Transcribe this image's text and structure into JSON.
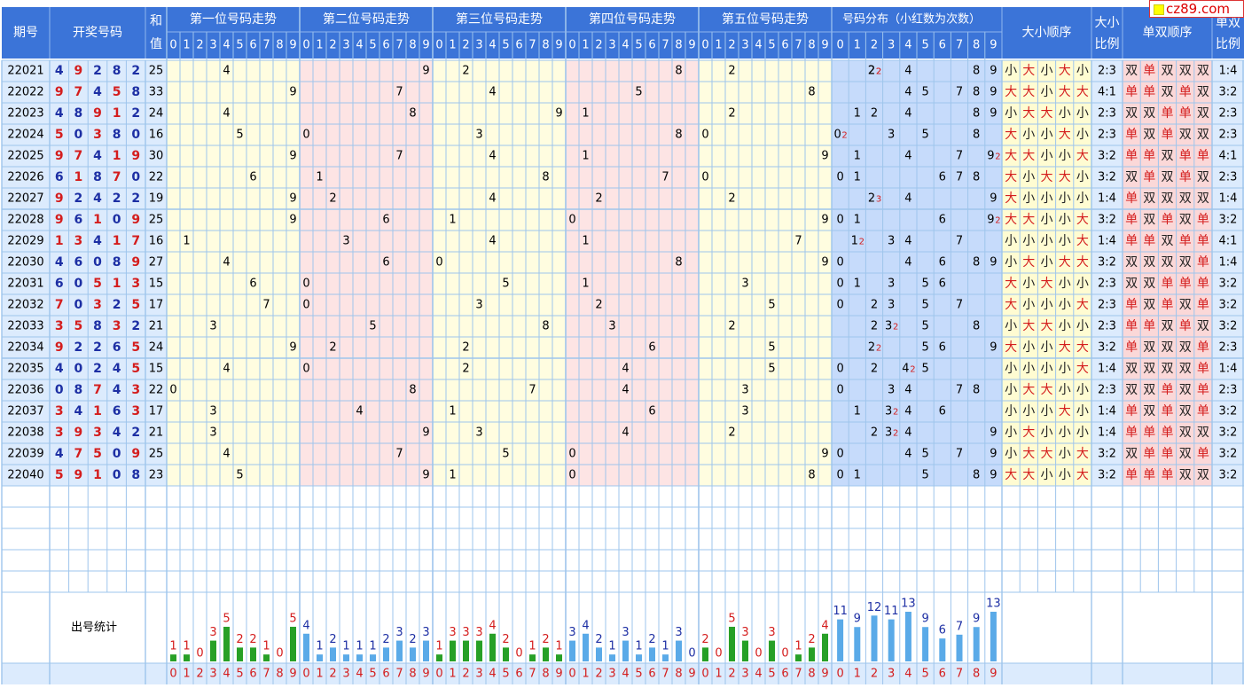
{
  "headers": {
    "issue": "期号",
    "draw": "开奖号码",
    "sum_top": "和",
    "sum_bottom": "值",
    "pos": [
      "第一位号码走势",
      "第二位号码走势",
      "第三位号码走势",
      "第四位号码走势",
      "第五位号码走势"
    ],
    "dist": "号码分布（小红数为次数）",
    "size_seq": "大小顺序",
    "size_ratio_top": "大小",
    "size_ratio_bottom": "比例",
    "parity_seq": "单双顺序",
    "parity_ratio_top": "单双",
    "parity_ratio_bottom": "比例",
    "stats": "出号统计"
  },
  "digits": [
    "0",
    "1",
    "2",
    "3",
    "4",
    "5",
    "6",
    "7",
    "8",
    "9"
  ],
  "words": {
    "big": "大",
    "small": "小",
    "odd": "单",
    "even": "双"
  },
  "watermark": "cz89.com",
  "colors": {
    "header_bg": "#3b74d8",
    "issue_bg": "#dcebfd",
    "draw_bg": "#dcebfd",
    "zone_yellow": "#fffde0",
    "zone_pink": "#fde4e4",
    "dist_bg": "#c6dbfb",
    "big_bg": "#fffcd2",
    "parity_bg": "#fbd8d8",
    "grid": "#9ec5ec",
    "blue_text": "#1d2fa4",
    "red_text": "#d41d1d",
    "green_bar": "#27a027",
    "blue_bar": "#5aaae8"
  },
  "chart_data": {
    "type": "table",
    "rows": [
      {
        "issue": "22021",
        "nums": [
          4,
          9,
          2,
          8,
          2
        ],
        "sum": "25",
        "dist": [
          2,
          2,
          4,
          8,
          9
        ],
        "dist_counts": {
          "2": 2
        },
        "size": [
          "小",
          "大",
          "小",
          "大",
          "小"
        ],
        "size_ratio": "2:3",
        "parity": [
          "双",
          "单",
          "双",
          "双",
          "双"
        ],
        "parity_ratio": "1:4"
      },
      {
        "issue": "22022",
        "nums": [
          9,
          7,
          4,
          5,
          8
        ],
        "sum": "33",
        "dist": [
          4,
          5,
          7,
          8,
          9
        ],
        "dist_counts": {},
        "size": [
          "大",
          "大",
          "小",
          "大",
          "大"
        ],
        "size_ratio": "4:1",
        "parity": [
          "单",
          "单",
          "双",
          "单",
          "双"
        ],
        "parity_ratio": "3:2"
      },
      {
        "issue": "22023",
        "nums": [
          4,
          8,
          9,
          1,
          2
        ],
        "sum": "24",
        "dist": [
          1,
          2,
          4,
          8,
          9
        ],
        "dist_counts": {},
        "size": [
          "小",
          "大",
          "大",
          "小",
          "小"
        ],
        "size_ratio": "2:3",
        "parity": [
          "双",
          "双",
          "单",
          "单",
          "双"
        ],
        "parity_ratio": "2:3"
      },
      {
        "issue": "22024",
        "nums": [
          5,
          0,
          3,
          8,
          0
        ],
        "sum": "16",
        "dist": [
          0,
          3,
          5,
          8
        ],
        "dist_counts": {
          "0": 2
        },
        "size": [
          "大",
          "小",
          "小",
          "大",
          "小"
        ],
        "size_ratio": "2:3",
        "parity": [
          "单",
          "双",
          "单",
          "双",
          "双"
        ],
        "parity_ratio": "2:3"
      },
      {
        "issue": "22025",
        "nums": [
          9,
          7,
          4,
          1,
          9
        ],
        "sum": "30",
        "dist": [
          1,
          4,
          7,
          9
        ],
        "dist_counts": {
          "9": 2
        },
        "size": [
          "大",
          "大",
          "小",
          "小",
          "大"
        ],
        "size_ratio": "3:2",
        "parity": [
          "单",
          "单",
          "双",
          "单",
          "单"
        ],
        "parity_ratio": "4:1"
      },
      {
        "issue": "22026",
        "nums": [
          6,
          1,
          8,
          7,
          0
        ],
        "sum": "22",
        "dist": [
          0,
          1,
          6,
          7,
          8
        ],
        "dist_counts": {},
        "size": [
          "大",
          "小",
          "大",
          "大",
          "小"
        ],
        "size_ratio": "3:2",
        "parity": [
          "双",
          "单",
          "双",
          "单",
          "双"
        ],
        "parity_ratio": "2:3"
      },
      {
        "issue": "22027",
        "nums": [
          9,
          2,
          4,
          2,
          2
        ],
        "sum": "19",
        "dist": [
          2,
          4,
          9
        ],
        "dist_counts": {
          "2": 3
        },
        "size": [
          "大",
          "小",
          "小",
          "小",
          "小"
        ],
        "size_ratio": "1:4",
        "parity": [
          "单",
          "双",
          "双",
          "双",
          "双"
        ],
        "parity_ratio": "1:4"
      },
      {
        "issue": "22028",
        "nums": [
          9,
          6,
          1,
          0,
          9
        ],
        "sum": "25",
        "dist": [
          0,
          1,
          6,
          9
        ],
        "dist_counts": {
          "9": 2
        },
        "size": [
          "大",
          "大",
          "小",
          "小",
          "大"
        ],
        "size_ratio": "3:2",
        "parity": [
          "单",
          "双",
          "单",
          "双",
          "单"
        ],
        "parity_ratio": "3:2"
      },
      {
        "issue": "22029",
        "nums": [
          1,
          3,
          4,
          1,
          7
        ],
        "sum": "16",
        "dist": [
          1,
          3,
          4,
          7
        ],
        "dist_counts": {
          "1": 2
        },
        "size": [
          "小",
          "小",
          "小",
          "小",
          "大"
        ],
        "size_ratio": "1:4",
        "parity": [
          "单",
          "单",
          "双",
          "单",
          "单"
        ],
        "parity_ratio": "4:1"
      },
      {
        "issue": "22030",
        "nums": [
          4,
          6,
          0,
          8,
          9
        ],
        "sum": "27",
        "dist": [
          0,
          4,
          6,
          8,
          9
        ],
        "dist_counts": {},
        "size": [
          "小",
          "大",
          "小",
          "大",
          "大"
        ],
        "size_ratio": "3:2",
        "parity": [
          "双",
          "双",
          "双",
          "双",
          "单"
        ],
        "parity_ratio": "1:4"
      },
      {
        "issue": "22031",
        "nums": [
          6,
          0,
          5,
          1,
          3
        ],
        "sum": "15",
        "dist": [
          0,
          1,
          3,
          5,
          6
        ],
        "dist_counts": {},
        "size": [
          "大",
          "小",
          "大",
          "小",
          "小"
        ],
        "size_ratio": "2:3",
        "parity": [
          "双",
          "双",
          "单",
          "单",
          "单"
        ],
        "parity_ratio": "3:2"
      },
      {
        "issue": "22032",
        "nums": [
          7,
          0,
          3,
          2,
          5
        ],
        "sum": "17",
        "dist": [
          0,
          2,
          3,
          5,
          7
        ],
        "dist_counts": {},
        "size": [
          "大",
          "小",
          "小",
          "小",
          "大"
        ],
        "size_ratio": "2:3",
        "parity": [
          "单",
          "双",
          "单",
          "双",
          "单"
        ],
        "parity_ratio": "3:2"
      },
      {
        "issue": "22033",
        "nums": [
          3,
          5,
          8,
          3,
          2
        ],
        "sum": "21",
        "dist": [
          2,
          3,
          5,
          8
        ],
        "dist_counts": {
          "3": 2
        },
        "size": [
          "小",
          "大",
          "大",
          "小",
          "小"
        ],
        "size_ratio": "2:3",
        "parity": [
          "单",
          "单",
          "双",
          "单",
          "双"
        ],
        "parity_ratio": "3:2"
      },
      {
        "issue": "22034",
        "nums": [
          9,
          2,
          2,
          6,
          5
        ],
        "sum": "24",
        "dist": [
          2,
          5,
          6,
          9
        ],
        "dist_counts": {
          "2": 2
        },
        "size": [
          "大",
          "小",
          "小",
          "大",
          "大"
        ],
        "size_ratio": "3:2",
        "parity": [
          "单",
          "双",
          "双",
          "双",
          "单"
        ],
        "parity_ratio": "2:3"
      },
      {
        "issue": "22035",
        "nums": [
          4,
          0,
          2,
          4,
          5
        ],
        "sum": "15",
        "dist": [
          0,
          2,
          4,
          5
        ],
        "dist_counts": {
          "4": 2
        },
        "size": [
          "小",
          "小",
          "小",
          "小",
          "大"
        ],
        "size_ratio": "1:4",
        "parity": [
          "双",
          "双",
          "双",
          "双",
          "单"
        ],
        "parity_ratio": "1:4"
      },
      {
        "issue": "22036",
        "nums": [
          0,
          8,
          7,
          4,
          3
        ],
        "sum": "22",
        "dist": [
          0,
          3,
          4,
          7,
          8
        ],
        "dist_counts": {},
        "size": [
          "小",
          "大",
          "大",
          "小",
          "小"
        ],
        "size_ratio": "2:3",
        "parity": [
          "双",
          "双",
          "单",
          "双",
          "单"
        ],
        "parity_ratio": "2:3"
      },
      {
        "issue": "22037",
        "nums": [
          3,
          4,
          1,
          6,
          3
        ],
        "sum": "17",
        "dist": [
          1,
          3,
          4,
          6
        ],
        "dist_counts": {
          "3": 2
        },
        "size": [
          "小",
          "小",
          "小",
          "大",
          "小"
        ],
        "size_ratio": "1:4",
        "parity": [
          "单",
          "双",
          "单",
          "双",
          "单"
        ],
        "parity_ratio": "3:2"
      },
      {
        "issue": "22038",
        "nums": [
          3,
          9,
          3,
          4,
          2
        ],
        "sum": "21",
        "dist": [
          2,
          3,
          4,
          9
        ],
        "dist_counts": {
          "3": 2
        },
        "size": [
          "小",
          "大",
          "小",
          "小",
          "小"
        ],
        "size_ratio": "1:4",
        "parity": [
          "单",
          "单",
          "单",
          "双",
          "双"
        ],
        "parity_ratio": "3:2"
      },
      {
        "issue": "22039",
        "nums": [
          4,
          7,
          5,
          0,
          9
        ],
        "sum": "25",
        "dist": [
          0,
          4,
          5,
          7,
          9
        ],
        "dist_counts": {},
        "size": [
          "小",
          "大",
          "大",
          "小",
          "大"
        ],
        "size_ratio": "3:2",
        "parity": [
          "双",
          "单",
          "单",
          "双",
          "单"
        ],
        "parity_ratio": "3:2"
      },
      {
        "issue": "22040",
        "nums": [
          5,
          9,
          1,
          0,
          8
        ],
        "sum": "23",
        "dist": [
          0,
          1,
          5,
          8,
          9
        ],
        "dist_counts": {},
        "size": [
          "大",
          "大",
          "小",
          "小",
          "大"
        ],
        "size_ratio": "3:2",
        "parity": [
          "单",
          "单",
          "单",
          "双",
          "双"
        ],
        "parity_ratio": "3:2"
      }
    ],
    "pos_stats": [
      [
        1,
        1,
        0,
        3,
        5,
        2,
        2,
        1,
        0,
        5
      ],
      [
        4,
        1,
        2,
        1,
        1,
        1,
        2,
        3,
        2,
        3
      ],
      [
        1,
        3,
        3,
        3,
        4,
        2,
        0,
        1,
        2,
        1
      ],
      [
        3,
        4,
        2,
        1,
        3,
        1,
        2,
        1,
        3,
        0
      ],
      [
        2,
        0,
        5,
        3,
        0,
        3,
        0,
        1,
        2,
        4
      ]
    ],
    "dist_stats": [
      11,
      9,
      12,
      11,
      13,
      9,
      6,
      7,
      9,
      13
    ],
    "stats_ymax": 13
  }
}
